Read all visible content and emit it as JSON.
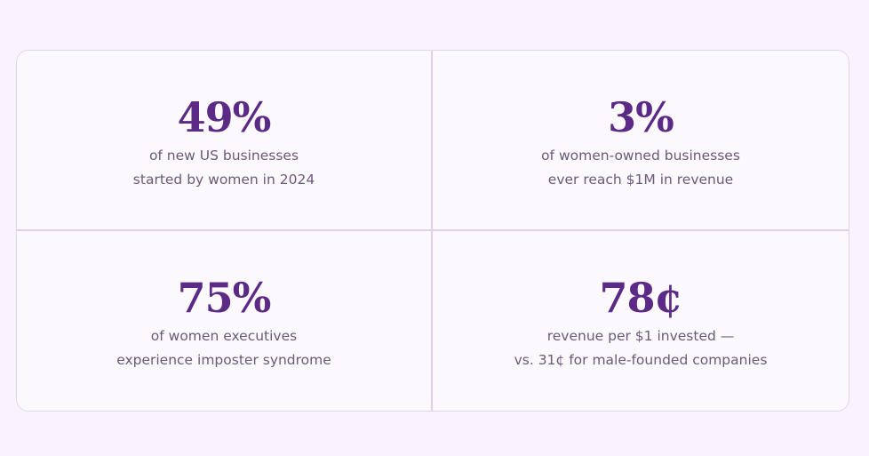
{
  "colors": {
    "accent": "#5b2a86",
    "text": "#6a5a78",
    "background": "#f8f3fd",
    "card": "#fcf9fe",
    "border": "#ddd0eb"
  },
  "stats": [
    {
      "value": "49%",
      "line1": "of new US businesses",
      "line2": "started by women in 2024"
    },
    {
      "value": "3%",
      "line1": "of women-owned businesses",
      "line2": "ever reach $1M in revenue"
    },
    {
      "value": "75%",
      "line1": "of women executives",
      "line2": "experience imposter syndrome"
    },
    {
      "value": "78¢",
      "line1": "revenue per $1 invested —",
      "line2": "vs. 31¢ for male-founded companies"
    }
  ]
}
